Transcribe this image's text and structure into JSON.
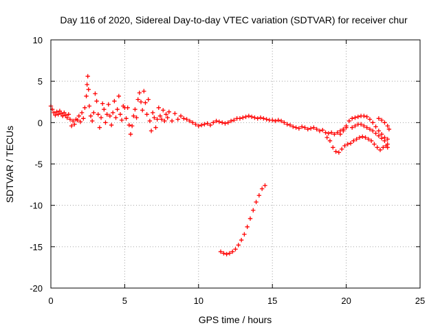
{
  "chart_data": {
    "type": "scatter",
    "title": "Day 116 of 2020, Sidereal Day-to-day VTEC variation (SDTVAR) for receiver chur",
    "xlabel": "GPS time / hours",
    "ylabel": "SDTVAR / TECUs",
    "xlim": [
      0,
      25
    ],
    "ylim": [
      -20,
      10
    ],
    "xticks": [
      0,
      5,
      10,
      15,
      20,
      25
    ],
    "xtick_labels": [
      "0",
      "5",
      "10",
      "15",
      "20",
      "25"
    ],
    "yticks": [
      -20,
      -15,
      -10,
      -5,
      0,
      5,
      10
    ],
    "ytick_labels": [
      "-20",
      "-15",
      "-10",
      "-5",
      "0",
      "5",
      "10"
    ],
    "grid": true,
    "marker": "plus",
    "color": "#ff0000",
    "series": [
      {
        "name": "SDTVAR",
        "points": [
          [
            0.0,
            2.0
          ],
          [
            0.1,
            1.6
          ],
          [
            0.2,
            1.2
          ],
          [
            0.3,
            0.9
          ],
          [
            0.4,
            1.3
          ],
          [
            0.5,
            1.0
          ],
          [
            0.6,
            1.4
          ],
          [
            0.7,
            1.1
          ],
          [
            0.8,
            0.8
          ],
          [
            0.9,
            1.2
          ],
          [
            1.0,
            0.9
          ],
          [
            1.1,
            0.6
          ],
          [
            1.2,
            1.0
          ],
          [
            1.3,
            0.4
          ],
          [
            1.4,
            -0.4
          ],
          [
            1.5,
            0.2
          ],
          [
            1.6,
            -0.2
          ],
          [
            1.7,
            0.4
          ],
          [
            1.8,
            0.3
          ],
          [
            1.9,
            0.8
          ],
          [
            2.0,
            0.1
          ],
          [
            2.1,
            1.2
          ],
          [
            2.2,
            0.5
          ],
          [
            2.3,
            1.8
          ],
          [
            2.4,
            3.2
          ],
          [
            2.45,
            4.6
          ],
          [
            2.5,
            5.6
          ],
          [
            2.55,
            4.0
          ],
          [
            2.6,
            2.0
          ],
          [
            2.7,
            0.8
          ],
          [
            2.8,
            0.2
          ],
          [
            2.9,
            1.2
          ],
          [
            3.0,
            3.5
          ],
          [
            3.1,
            2.6
          ],
          [
            3.2,
            1.0
          ],
          [
            3.3,
            -0.6
          ],
          [
            3.4,
            0.6
          ],
          [
            3.5,
            2.3
          ],
          [
            3.6,
            1.6
          ],
          [
            3.7,
            0.0
          ],
          [
            3.8,
            1.0
          ],
          [
            3.9,
            2.2
          ],
          [
            4.0,
            0.8
          ],
          [
            4.1,
            -0.3
          ],
          [
            4.2,
            1.2
          ],
          [
            4.3,
            2.6
          ],
          [
            4.4,
            0.6
          ],
          [
            4.5,
            1.6
          ],
          [
            4.6,
            3.2
          ],
          [
            4.7,
            1.0
          ],
          [
            4.8,
            0.3
          ],
          [
            4.9,
            2.0
          ],
          [
            5.0,
            1.8
          ],
          [
            5.1,
            0.5
          ],
          [
            5.2,
            1.8
          ],
          [
            5.3,
            -0.3
          ],
          [
            5.4,
            -1.4
          ],
          [
            5.5,
            -0.4
          ],
          [
            5.6,
            0.8
          ],
          [
            5.7,
            1.6
          ],
          [
            5.8,
            0.6
          ],
          [
            5.9,
            2.8
          ],
          [
            6.0,
            3.6
          ],
          [
            6.1,
            2.5
          ],
          [
            6.2,
            1.5
          ],
          [
            6.3,
            3.8
          ],
          [
            6.4,
            2.4
          ],
          [
            6.5,
            1.0
          ],
          [
            6.6,
            2.8
          ],
          [
            6.7,
            0.2
          ],
          [
            6.8,
            -1.0
          ],
          [
            6.9,
            1.2
          ],
          [
            7.0,
            0.6
          ],
          [
            7.1,
            -0.6
          ],
          [
            7.2,
            0.4
          ],
          [
            7.3,
            1.8
          ],
          [
            7.4,
            0.8
          ],
          [
            7.5,
            0.4
          ],
          [
            7.6,
            1.5
          ],
          [
            7.7,
            0.2
          ],
          [
            7.8,
            1.0
          ],
          [
            7.9,
            0.6
          ],
          [
            8.0,
            1.3
          ],
          [
            8.2,
            0.2
          ],
          [
            8.4,
            1.1
          ],
          [
            8.6,
            0.4
          ],
          [
            8.8,
            0.8
          ],
          [
            9.0,
            0.5
          ],
          [
            9.2,
            0.4
          ],
          [
            9.4,
            0.2
          ],
          [
            9.6,
            0.0
          ],
          [
            9.8,
            -0.2
          ],
          [
            10.0,
            -0.4
          ],
          [
            10.2,
            -0.3
          ],
          [
            10.4,
            -0.2
          ],
          [
            10.6,
            -0.1
          ],
          [
            10.8,
            -0.3
          ],
          [
            11.0,
            0.0
          ],
          [
            11.2,
            0.2
          ],
          [
            11.4,
            0.1
          ],
          [
            11.6,
            0.0
          ],
          [
            11.8,
            -0.1
          ],
          [
            12.0,
            0.0
          ],
          [
            12.2,
            0.2
          ],
          [
            12.4,
            0.3
          ],
          [
            12.6,
            0.5
          ],
          [
            12.8,
            0.5
          ],
          [
            13.0,
            0.6
          ],
          [
            13.2,
            0.7
          ],
          [
            13.4,
            0.8
          ],
          [
            13.6,
            0.7
          ],
          [
            13.8,
            0.6
          ],
          [
            14.0,
            0.5
          ],
          [
            14.2,
            0.6
          ],
          [
            14.4,
            0.5
          ],
          [
            14.6,
            0.4
          ],
          [
            14.8,
            0.3
          ],
          [
            15.0,
            0.3
          ],
          [
            15.2,
            0.2
          ],
          [
            15.4,
            0.3
          ],
          [
            15.6,
            0.2
          ],
          [
            15.8,
            0.0
          ],
          [
            16.0,
            -0.2
          ],
          [
            16.2,
            -0.3
          ],
          [
            16.4,
            -0.5
          ],
          [
            16.6,
            -0.6
          ],
          [
            16.8,
            -0.7
          ],
          [
            17.0,
            -0.5
          ],
          [
            17.2,
            -0.6
          ],
          [
            17.4,
            -0.8
          ],
          [
            17.6,
            -0.7
          ],
          [
            17.8,
            -0.6
          ],
          [
            18.0,
            -0.8
          ],
          [
            18.2,
            -1.0
          ],
          [
            18.4,
            -0.9
          ],
          [
            18.6,
            -1.2
          ],
          [
            18.8,
            -1.3
          ],
          [
            19.0,
            -1.2
          ],
          [
            19.2,
            -1.4
          ],
          [
            19.4,
            -1.2
          ],
          [
            19.6,
            -1.0
          ],
          [
            19.8,
            -0.8
          ],
          [
            20.0,
            -0.6
          ],
          [
            18.7,
            -1.8
          ],
          [
            18.9,
            -2.2
          ],
          [
            19.1,
            -3.0
          ],
          [
            19.3,
            -3.5
          ],
          [
            19.5,
            -3.6
          ],
          [
            19.7,
            -3.2
          ],
          [
            19.9,
            -2.8
          ],
          [
            20.1,
            -2.6
          ],
          [
            20.3,
            -2.5
          ],
          [
            20.5,
            -2.2
          ],
          [
            20.7,
            -2.0
          ],
          [
            20.9,
            -1.8
          ],
          [
            21.1,
            -1.7
          ],
          [
            21.3,
            -1.8
          ],
          [
            21.5,
            -2.0
          ],
          [
            21.7,
            -2.2
          ],
          [
            21.9,
            -2.6
          ],
          [
            22.1,
            -3.0
          ],
          [
            22.3,
            -3.3
          ],
          [
            22.5,
            -3.0
          ],
          [
            22.7,
            -2.8
          ],
          [
            22.8,
            -3.0
          ],
          [
            19.6,
            -1.4
          ],
          [
            19.8,
            -1.0
          ],
          [
            20.0,
            -0.4
          ],
          [
            20.2,
            0.2
          ],
          [
            20.4,
            0.5
          ],
          [
            20.6,
            0.6
          ],
          [
            20.8,
            0.7
          ],
          [
            21.0,
            0.8
          ],
          [
            21.2,
            0.8
          ],
          [
            21.4,
            0.7
          ],
          [
            21.6,
            0.4
          ],
          [
            21.8,
            0.0
          ],
          [
            22.0,
            -0.5
          ],
          [
            22.2,
            -1.0
          ],
          [
            22.4,
            -1.4
          ],
          [
            22.6,
            -1.8
          ],
          [
            22.8,
            -2.0
          ],
          [
            20.4,
            -0.6
          ],
          [
            20.6,
            -0.4
          ],
          [
            20.8,
            -0.2
          ],
          [
            21.0,
            -0.2
          ],
          [
            21.2,
            -0.4
          ],
          [
            21.4,
            -0.6
          ],
          [
            21.6,
            -0.8
          ],
          [
            21.8,
            -1.0
          ],
          [
            22.0,
            -1.3
          ],
          [
            22.2,
            -1.6
          ],
          [
            22.4,
            -1.9
          ],
          [
            22.6,
            -2.2
          ],
          [
            22.8,
            -2.6
          ],
          [
            22.2,
            0.5
          ],
          [
            22.4,
            0.3
          ],
          [
            22.6,
            0.0
          ],
          [
            22.8,
            -0.4
          ],
          [
            22.9,
            -0.8
          ],
          [
            11.5,
            -15.6
          ],
          [
            11.7,
            -15.8
          ],
          [
            11.9,
            -15.9
          ],
          [
            12.1,
            -15.8
          ],
          [
            12.3,
            -15.6
          ],
          [
            12.5,
            -15.3
          ],
          [
            12.7,
            -14.8
          ],
          [
            12.9,
            -14.2
          ],
          [
            13.1,
            -13.5
          ],
          [
            13.3,
            -12.6
          ],
          [
            13.5,
            -11.6
          ],
          [
            13.7,
            -10.6
          ],
          [
            13.9,
            -9.6
          ],
          [
            14.1,
            -8.8
          ],
          [
            14.3,
            -8.0
          ],
          [
            14.5,
            -7.6
          ]
        ]
      }
    ]
  }
}
